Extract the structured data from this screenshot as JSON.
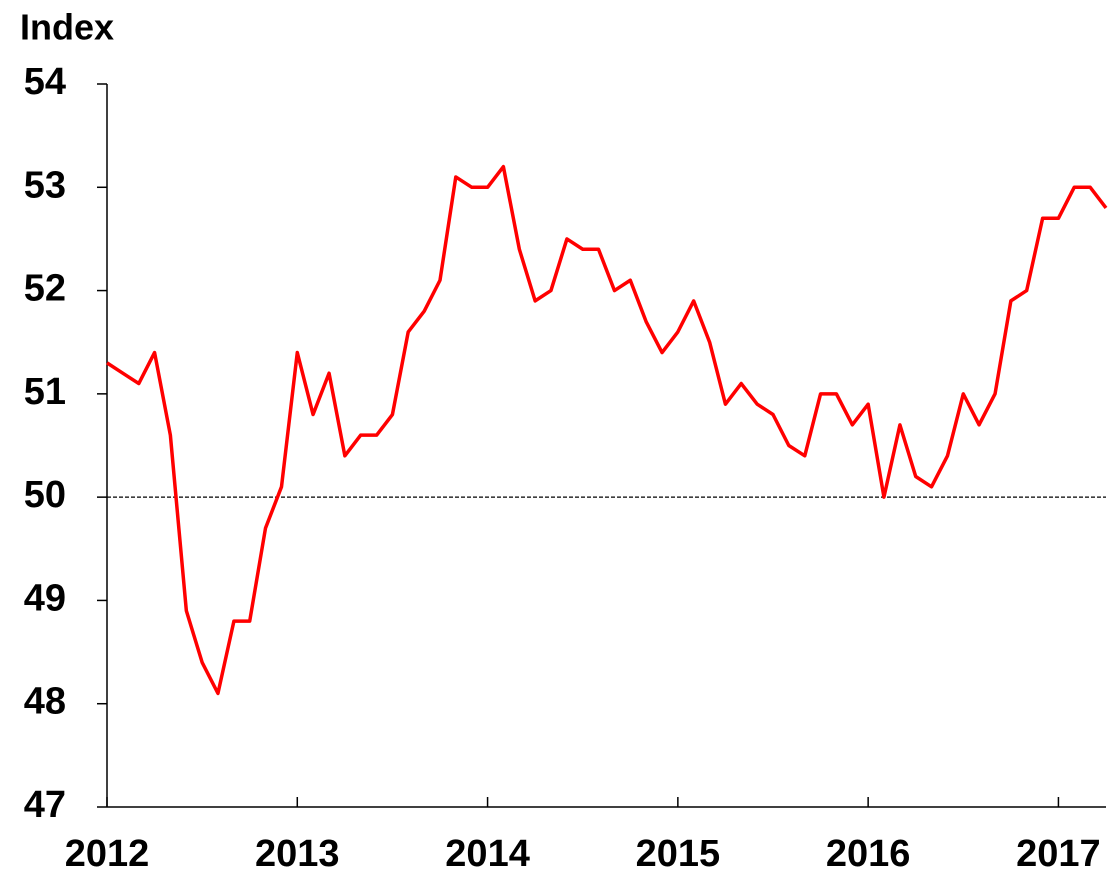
{
  "chart_data": {
    "type": "line",
    "y_axis_label": "Index",
    "x": [
      2012,
      2012.083,
      2012.167,
      2012.25,
      2012.333,
      2012.417,
      2012.5,
      2012.583,
      2012.667,
      2012.75,
      2012.833,
      2012.917,
      2013,
      2013.083,
      2013.167,
      2013.25,
      2013.333,
      2013.417,
      2013.5,
      2013.583,
      2013.667,
      2013.75,
      2013.833,
      2013.917,
      2014,
      2014.083,
      2014.167,
      2014.25,
      2014.333,
      2014.417,
      2014.5,
      2014.583,
      2014.667,
      2014.75,
      2014.833,
      2014.917,
      2015,
      2015.083,
      2015.167,
      2015.25,
      2015.333,
      2015.417,
      2015.5,
      2015.583,
      2015.667,
      2015.75,
      2015.833,
      2015.917,
      2016,
      2016.083,
      2016.167,
      2016.25,
      2016.333,
      2016.417,
      2016.5,
      2016.583,
      2016.667,
      2016.75,
      2016.833,
      2016.917,
      2017,
      2017.083,
      2017.167,
      2017.25
    ],
    "series": [
      {
        "name": "Index",
        "color": "#ff0000",
        "values": [
          51.3,
          51.2,
          51.1,
          51.4,
          50.6,
          48.9,
          48.4,
          48.1,
          48.8,
          48.8,
          49.7,
          50.1,
          51.4,
          50.8,
          51.2,
          50.4,
          50.6,
          50.6,
          50.8,
          51.6,
          51.8,
          52.1,
          53.1,
          53.0,
          53.0,
          53.2,
          52.4,
          51.9,
          52.0,
          52.5,
          52.4,
          52.4,
          52.0,
          52.1,
          51.7,
          51.4,
          51.6,
          51.9,
          51.5,
          50.9,
          51.1,
          50.9,
          50.8,
          50.5,
          50.4,
          51.0,
          51.0,
          50.7,
          50.9,
          50.0,
          50.7,
          50.2,
          50.1,
          50.4,
          51.0,
          50.7,
          51.0,
          51.9,
          52.0,
          52.7,
          52.7,
          53.0,
          53.0,
          52.8
        ]
      }
    ],
    "xlim": [
      2012,
      2017.25
    ],
    "xticks": [
      2012,
      2013,
      2014,
      2015,
      2016,
      2017
    ],
    "ylim": [
      47,
      54
    ],
    "yticks": [
      47,
      48,
      49,
      50,
      51,
      52,
      53,
      54
    ],
    "reference_line": 50
  }
}
